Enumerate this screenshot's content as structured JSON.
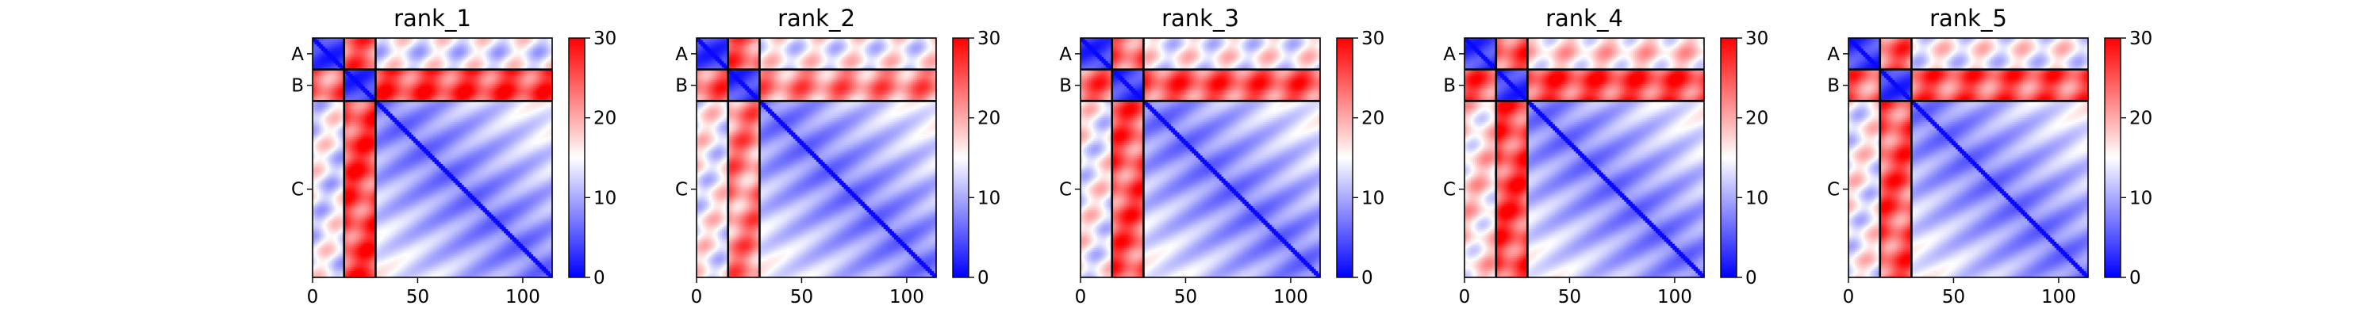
{
  "figure": {
    "colormap": {
      "low": "#0000ff",
      "mid": "#ffffff",
      "high": "#ff0000"
    },
    "colorbar_ticks": [
      "0",
      "10",
      "20",
      "30"
    ]
  },
  "chart_data": [
    {
      "type": "heatmap",
      "title": "rank_1",
      "xlim": [
        0,
        114
      ],
      "clim": [
        0,
        30
      ],
      "x_ticks": [
        "0",
        "50",
        "100"
      ],
      "chains": [
        {
          "label": "A",
          "start": 0,
          "end": 15
        },
        {
          "label": "B",
          "start": 15,
          "end": 30
        },
        {
          "label": "C",
          "start": 30,
          "end": 114
        }
      ],
      "colorbar_ticks": [
        0,
        10,
        20,
        30
      ],
      "block_means": {
        "A-A": 3,
        "A-B": 24,
        "A-C": 14,
        "B-B": 3,
        "B-C": 26,
        "C-C": 7
      }
    },
    {
      "type": "heatmap",
      "title": "rank_2",
      "xlim": [
        0,
        114
      ],
      "clim": [
        0,
        30
      ],
      "x_ticks": [
        "0",
        "50",
        "100"
      ],
      "chains": [
        {
          "label": "A",
          "start": 0,
          "end": 15
        },
        {
          "label": "B",
          "start": 15,
          "end": 30
        },
        {
          "label": "C",
          "start": 30,
          "end": 114
        }
      ],
      "colorbar_ticks": [
        0,
        10,
        20,
        30
      ],
      "block_means": {
        "A-A": 3,
        "A-B": 24,
        "A-C": 15,
        "B-B": 3,
        "B-C": 22,
        "C-C": 7
      }
    },
    {
      "type": "heatmap",
      "title": "rank_3",
      "xlim": [
        0,
        114
      ],
      "clim": [
        0,
        30
      ],
      "x_ticks": [
        "0",
        "50",
        "100"
      ],
      "chains": [
        {
          "label": "A",
          "start": 0,
          "end": 15
        },
        {
          "label": "B",
          "start": 15,
          "end": 30
        },
        {
          "label": "C",
          "start": 30,
          "end": 114
        }
      ],
      "colorbar_ticks": [
        0,
        10,
        20,
        30
      ],
      "block_means": {
        "A-A": 3,
        "A-B": 24,
        "A-C": 15,
        "B-B": 3,
        "B-C": 25,
        "C-C": 7
      }
    },
    {
      "type": "heatmap",
      "title": "rank_4",
      "xlim": [
        0,
        114
      ],
      "clim": [
        0,
        30
      ],
      "x_ticks": [
        "0",
        "50",
        "100"
      ],
      "chains": [
        {
          "label": "A",
          "start": 0,
          "end": 15
        },
        {
          "label": "B",
          "start": 15,
          "end": 30
        },
        {
          "label": "C",
          "start": 30,
          "end": 114
        }
      ],
      "colorbar_ticks": [
        0,
        10,
        20,
        30
      ],
      "block_means": {
        "A-A": 3,
        "A-B": 25,
        "A-C": 17,
        "B-B": 3,
        "B-C": 26,
        "C-C": 7
      }
    },
    {
      "type": "heatmap",
      "title": "rank_5",
      "xlim": [
        0,
        114
      ],
      "clim": [
        0,
        30
      ],
      "x_ticks": [
        "0",
        "50",
        "100"
      ],
      "chains": [
        {
          "label": "A",
          "start": 0,
          "end": 15
        },
        {
          "label": "B",
          "start": 15,
          "end": 30
        },
        {
          "label": "C",
          "start": 30,
          "end": 114
        }
      ],
      "colorbar_ticks": [
        0,
        10,
        20,
        30
      ],
      "block_means": {
        "A-A": 3,
        "A-B": 24,
        "A-C": 15,
        "B-B": 3,
        "B-C": 25,
        "C-C": 7
      }
    }
  ]
}
